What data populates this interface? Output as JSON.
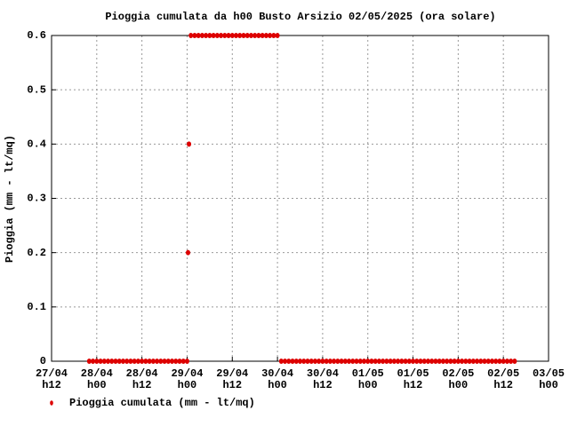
{
  "chart_data": {
    "type": "scatter",
    "title": "Pioggia cumulata da h00 Busto Arsizio 02/05/2025 (ora solare)",
    "y_label": "Pioggia (mm - lt/mq)",
    "xlim": [
      0,
      132
    ],
    "xticks": [
      {
        "value": 0,
        "label": "27/04 h12"
      },
      {
        "value": 12,
        "label": "28/04 h00"
      },
      {
        "value": 24,
        "label": "28/04 h12"
      },
      {
        "value": 36,
        "label": "29/04 h00"
      },
      {
        "value": 48,
        "label": "29/04 h12"
      },
      {
        "value": 60,
        "label": "30/04 h00"
      },
      {
        "value": 72,
        "label": "30/04 h12"
      },
      {
        "value": 84,
        "label": "01/05 h00"
      },
      {
        "value": 96,
        "label": "01/05 h12"
      },
      {
        "value": 108,
        "label": "02/05 h00"
      },
      {
        "value": 120,
        "label": "02/05 h12"
      },
      {
        "value": 132,
        "label": "03/05 h00"
      }
    ],
    "ylim": [
      0,
      0.6
    ],
    "yticks": [
      0,
      0.1,
      0.2,
      0.3,
      0.4,
      0.5,
      0.6
    ],
    "grid": true,
    "legend": "bottom-left",
    "series": [
      {
        "name": "Pioggia cumulata (mm - lt/mq)",
        "color": "#dd0000",
        "x": [
          10,
          11,
          12,
          13,
          14,
          15,
          16,
          17,
          18,
          19,
          20,
          21,
          22,
          23,
          24,
          25,
          26,
          27,
          28,
          29,
          30,
          31,
          32,
          33,
          34,
          35,
          36,
          36.25,
          36.5,
          37,
          38,
          39,
          40,
          41,
          42,
          43,
          44,
          45,
          46,
          47,
          48,
          49,
          50,
          51,
          52,
          53,
          54,
          55,
          56,
          57,
          58,
          59,
          60,
          61,
          62,
          63,
          64,
          65,
          66,
          67,
          68,
          69,
          70,
          71,
          72,
          73,
          74,
          75,
          76,
          77,
          78,
          79,
          80,
          81,
          82,
          83,
          84,
          85,
          86,
          87,
          88,
          89,
          90,
          91,
          92,
          93,
          94,
          95,
          96,
          97,
          98,
          99,
          100,
          101,
          102,
          103,
          104,
          105,
          106,
          107,
          108,
          109,
          110,
          111,
          112,
          113,
          114,
          115,
          116,
          117,
          118,
          119,
          120,
          121,
          122,
          123
        ],
        "values": [
          0,
          0,
          0,
          0,
          0,
          0,
          0,
          0,
          0,
          0,
          0,
          0,
          0,
          0,
          0,
          0,
          0,
          0,
          0,
          0,
          0,
          0,
          0,
          0,
          0,
          0,
          0,
          0.2,
          0.4,
          0.6,
          0.6,
          0.6,
          0.6,
          0.6,
          0.6,
          0.6,
          0.6,
          0.6,
          0.6,
          0.6,
          0.6,
          0.6,
          0.6,
          0.6,
          0.6,
          0.6,
          0.6,
          0.6,
          0.6,
          0.6,
          0.6,
          0.6,
          0.6,
          0,
          0,
          0,
          0,
          0,
          0,
          0,
          0,
          0,
          0,
          0,
          0,
          0,
          0,
          0,
          0,
          0,
          0,
          0,
          0,
          0,
          0,
          0,
          0,
          0,
          0,
          0,
          0,
          0,
          0,
          0,
          0,
          0,
          0,
          0,
          0,
          0,
          0,
          0,
          0,
          0,
          0,
          0,
          0,
          0,
          0,
          0,
          0,
          0,
          0,
          0,
          0,
          0,
          0,
          0,
          0,
          0,
          0,
          0,
          0,
          0,
          0,
          0
        ]
      }
    ]
  }
}
